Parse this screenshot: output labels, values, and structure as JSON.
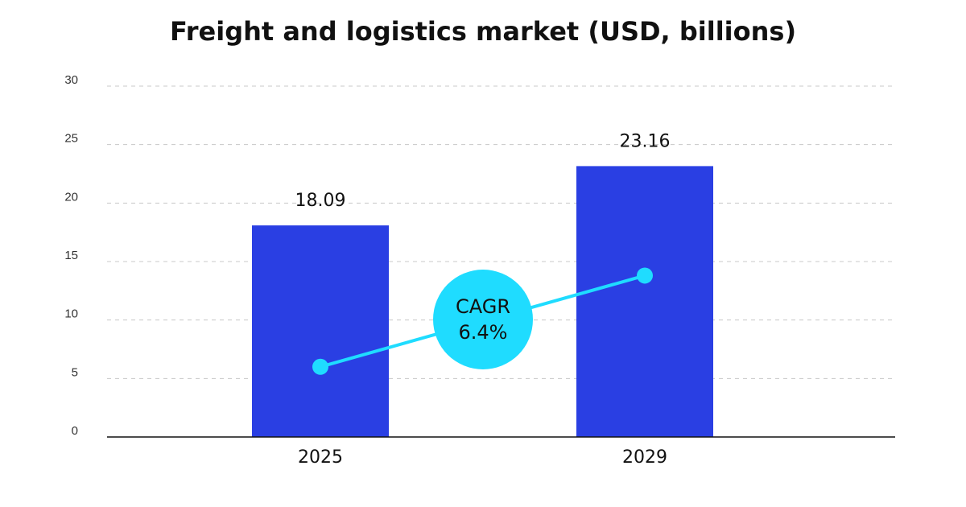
{
  "chart_data": {
    "type": "bar",
    "title": "Freight and logistics market (USD, billions)",
    "categories": [
      "2025",
      "2029"
    ],
    "values": [
      18.09,
      23.16
    ],
    "data_labels": [
      "18.09",
      "23.16"
    ],
    "ylim": [
      0,
      30
    ],
    "yticks": [
      0,
      5,
      10,
      15,
      20,
      25,
      30
    ],
    "xlabel": "",
    "ylabel": "",
    "grid": true,
    "bar_color": "#2a3fe3",
    "accent_color": "#1fdcff",
    "trend_line": {
      "values": [
        6.0,
        13.8
      ],
      "color": "#1fdcff"
    },
    "badge": {
      "line1": "CAGR",
      "line2": "6.4%"
    }
  }
}
